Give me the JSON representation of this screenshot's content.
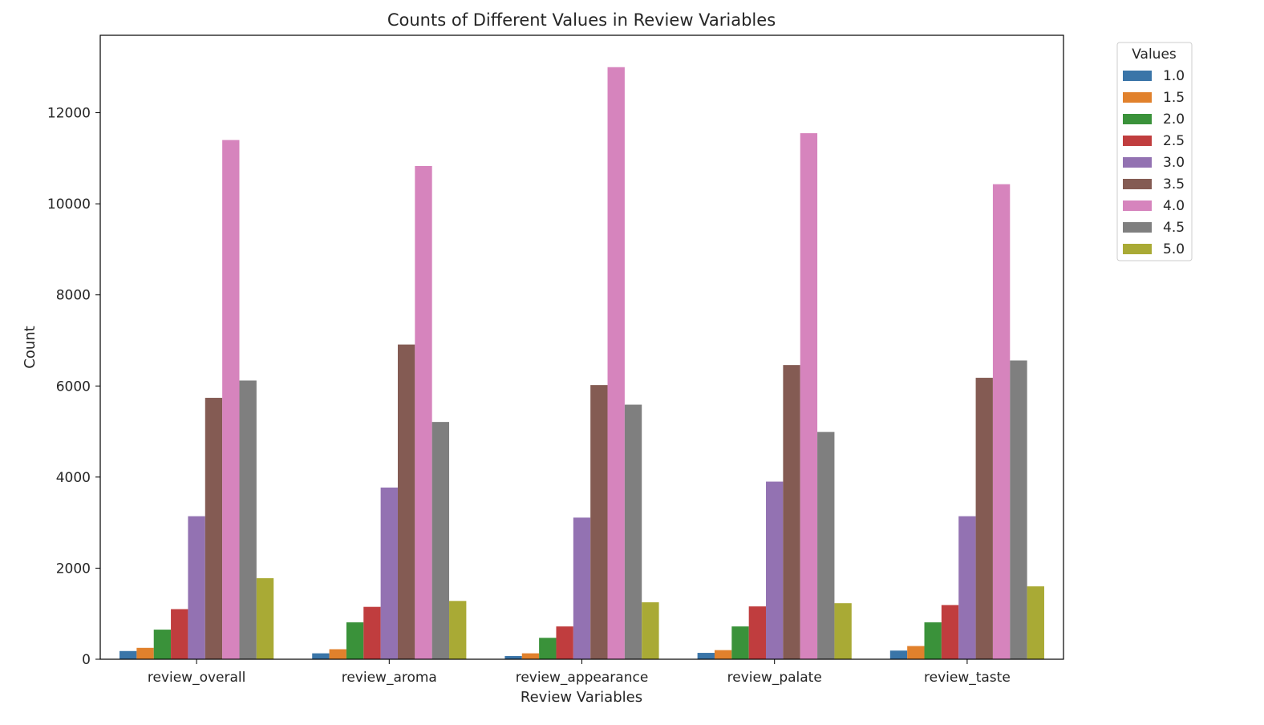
{
  "chart_data": {
    "type": "bar",
    "title": "Counts of Different Values in Review Variables",
    "xlabel": "Review Variables",
    "ylabel": "Count",
    "ylim": [
      0,
      13700
    ],
    "yticks": [
      0,
      2000,
      4000,
      6000,
      8000,
      10000,
      12000
    ],
    "categories": [
      "review_overall",
      "review_aroma",
      "review_appearance",
      "review_palate",
      "review_taste"
    ],
    "legend": {
      "title": "Values",
      "placement": "outside-top-right"
    },
    "grid": false,
    "series": [
      {
        "name": "1.0",
        "color": "#3a75a8",
        "values": [
          180,
          130,
          70,
          140,
          190
        ]
      },
      {
        "name": "1.5",
        "color": "#e1812c",
        "values": [
          250,
          220,
          130,
          200,
          290
        ]
      },
      {
        "name": "2.0",
        "color": "#3a923a",
        "values": [
          650,
          810,
          470,
          720,
          810
        ]
      },
      {
        "name": "2.5",
        "color": "#c03d3e",
        "values": [
          1100,
          1150,
          720,
          1160,
          1190
        ]
      },
      {
        "name": "3.0",
        "color": "#9372b2",
        "values": [
          3140,
          3770,
          3110,
          3900,
          3140
        ]
      },
      {
        "name": "3.5",
        "color": "#845b53",
        "values": [
          5740,
          6910,
          6020,
          6460,
          6180
        ]
      },
      {
        "name": "4.0",
        "color": "#d684bd",
        "values": [
          11400,
          10830,
          13000,
          11550,
          10430
        ]
      },
      {
        "name": "4.5",
        "color": "#7f7f7f",
        "values": [
          6120,
          5210,
          5590,
          4990,
          6560
        ]
      },
      {
        "name": "5.0",
        "color": "#a9aa35",
        "values": [
          1780,
          1280,
          1250,
          1230,
          1600
        ]
      }
    ]
  }
}
